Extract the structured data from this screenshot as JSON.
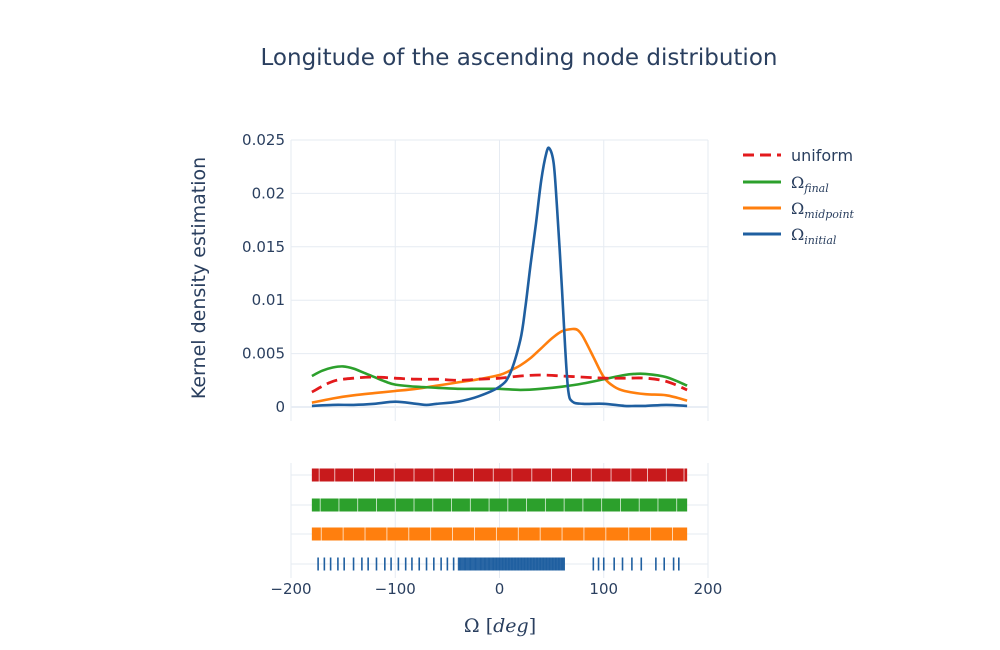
{
  "chart_data": {
    "type": "line",
    "title": "Longitude of the ascending node distribution",
    "xlabel": {
      "symbol": "Ω",
      "unit_open": " [",
      "unit": "deg",
      "unit_close": "]"
    },
    "ylabel": "Kernel density estimation",
    "xlim": [
      -200,
      200
    ],
    "ylim": [
      0,
      0.025
    ],
    "x_ticks": [
      -200,
      -100,
      0,
      100,
      200
    ],
    "x_tick_labels": [
      "−200",
      "−100",
      "0",
      "100",
      "200"
    ],
    "y_ticks": [
      0,
      0.005,
      0.01,
      0.015,
      0.02,
      0.025
    ],
    "y_tick_labels": [
      "0",
      "0.005",
      "0.01",
      "0.015",
      "0.02",
      "0.025"
    ],
    "grid": true,
    "legend_position": "top-right",
    "series": [
      {
        "key": "uniform",
        "name": "uniform",
        "name_sub": "",
        "color": "#e31a1c",
        "dash": true,
        "x": [
          -180,
          -160,
          -140,
          -120,
          -100,
          -80,
          -60,
          -40,
          -20,
          0,
          20,
          40,
          60,
          80,
          100,
          120,
          140,
          160,
          180
        ],
        "y": [
          0.0014,
          0.0024,
          0.0027,
          0.0028,
          0.0027,
          0.0026,
          0.0026,
          0.0025,
          0.0026,
          0.0027,
          0.0029,
          0.003,
          0.0029,
          0.0028,
          0.0027,
          0.0027,
          0.0027,
          0.0024,
          0.0016
        ]
      },
      {
        "key": "final",
        "name": "Ω",
        "name_sub": "final",
        "color": "#2ca02c",
        "dash": false,
        "x": [
          -180,
          -170,
          -160,
          -150,
          -140,
          -130,
          -120,
          -110,
          -100,
          -80,
          -60,
          -40,
          -20,
          0,
          20,
          40,
          60,
          80,
          100,
          120,
          130,
          140,
          160,
          180
        ],
        "y": [
          0.0029,
          0.0034,
          0.0037,
          0.0038,
          0.0036,
          0.0032,
          0.0028,
          0.0024,
          0.0021,
          0.0019,
          0.0018,
          0.0017,
          0.0017,
          0.0017,
          0.0016,
          0.0017,
          0.0019,
          0.0022,
          0.0026,
          0.003,
          0.0031,
          0.0031,
          0.0028,
          0.002
        ]
      },
      {
        "key": "midpoint",
        "name": "Ω",
        "name_sub": "midpoint",
        "color": "#ff7f0e",
        "dash": false,
        "x": [
          -180,
          -160,
          -140,
          -120,
          -100,
          -80,
          -60,
          -40,
          -20,
          0,
          10,
          20,
          30,
          40,
          50,
          60,
          70,
          75,
          80,
          90,
          100,
          110,
          120,
          140,
          160,
          180
        ],
        "y": [
          0.0004,
          0.0008,
          0.0011,
          0.0013,
          0.0015,
          0.0017,
          0.002,
          0.0023,
          0.0026,
          0.003,
          0.0034,
          0.0039,
          0.0046,
          0.0055,
          0.0064,
          0.0071,
          0.0073,
          0.0072,
          0.0066,
          0.0047,
          0.0028,
          0.0019,
          0.0015,
          0.0012,
          0.0011,
          0.0006
        ]
      },
      {
        "key": "initial",
        "name": "Ω",
        "name_sub": "initial",
        "color": "#1f5fa0",
        "dash": false,
        "x": [
          -180,
          -160,
          -140,
          -120,
          -100,
          -80,
          -70,
          -60,
          -40,
          -20,
          0,
          10,
          20,
          25,
          30,
          35,
          40,
          45,
          48,
          52,
          55,
          60,
          63,
          66,
          70,
          80,
          100,
          120,
          130,
          140,
          160,
          180
        ],
        "y": [
          0.0001,
          0.0002,
          0.0002,
          0.0003,
          0.0005,
          0.0003,
          0.0002,
          0.0003,
          0.0005,
          0.001,
          0.0019,
          0.0031,
          0.0063,
          0.0095,
          0.0135,
          0.0172,
          0.0212,
          0.0238,
          0.0242,
          0.0228,
          0.019,
          0.011,
          0.0055,
          0.0015,
          0.0005,
          0.0003,
          0.0003,
          0.0001,
          0.0001,
          0.0001,
          0.0002,
          0.0001
        ]
      }
    ],
    "rug": [
      {
        "key": "uniform",
        "color": "#c81a1c",
        "values": [
          -178,
          -173,
          -170,
          -165,
          -158,
          -152,
          -146,
          -140,
          -133,
          -127,
          -120,
          -114,
          -108,
          -101,
          -95,
          -88,
          -82,
          -76,
          -70,
          -63,
          -57,
          -50,
          -44,
          -38,
          -31,
          -25,
          -19,
          -12,
          -6,
          0,
          6,
          12,
          19,
          25,
          31,
          37,
          44,
          50,
          56,
          63,
          69,
          75,
          82,
          88,
          94,
          101,
          107,
          113,
          120,
          126,
          130,
          136,
          142,
          148,
          154,
          160,
          166,
          172,
          177
        ]
      },
      {
        "key": "final",
        "color": "#2ca02c",
        "values": [
          -178,
          -172,
          -166,
          -160,
          -154,
          -148,
          -142,
          -136,
          -130,
          -124,
          -118,
          -112,
          -106,
          -100,
          -94,
          -88,
          -82,
          -76,
          -70,
          -64,
          -58,
          -52,
          -46,
          -40,
          -34,
          -28,
          -22,
          -16,
          -10,
          -4,
          2,
          8,
          14,
          20,
          26,
          32,
          38,
          44,
          50,
          56,
          62,
          68,
          74,
          80,
          86,
          92,
          98,
          104,
          110,
          116,
          122,
          128,
          134,
          140,
          146,
          152,
          158,
          164,
          170,
          176
        ]
      },
      {
        "key": "midpoint",
        "color": "#ff7f0e",
        "values": [
          -178,
          -171,
          -164,
          -157,
          -150,
          -143,
          -136,
          -129,
          -122,
          -115,
          -108,
          -101,
          -94,
          -87,
          -80,
          -73,
          -66,
          -59,
          -52,
          -45,
          -38,
          -31,
          -24,
          -17,
          -10,
          -3,
          4,
          11,
          18,
          25,
          32,
          39,
          46,
          53,
          60,
          67,
          74,
          81,
          88,
          95,
          102,
          110,
          117,
          124,
          131,
          138,
          145,
          152,
          159,
          166,
          173,
          178
        ]
      },
      {
        "key": "initial",
        "color": "#1f5fa0",
        "values": [
          -174,
          -168,
          -162,
          -155,
          -149,
          -140,
          -132,
          -126,
          -118,
          -110,
          -104,
          -97,
          -90,
          -84,
          -77,
          -70,
          -63,
          -56,
          -50,
          -44,
          -38,
          -33,
          -28,
          -23,
          -18,
          -14,
          -10,
          -6,
          -3,
          0,
          3,
          6,
          9,
          12,
          15,
          18,
          21,
          24,
          27,
          30,
          33,
          36,
          39,
          42,
          45,
          48,
          51,
          54,
          57,
          60,
          62,
          90,
          95,
          100,
          110,
          118,
          127,
          136,
          150,
          158,
          167,
          172
        ]
      }
    ]
  }
}
